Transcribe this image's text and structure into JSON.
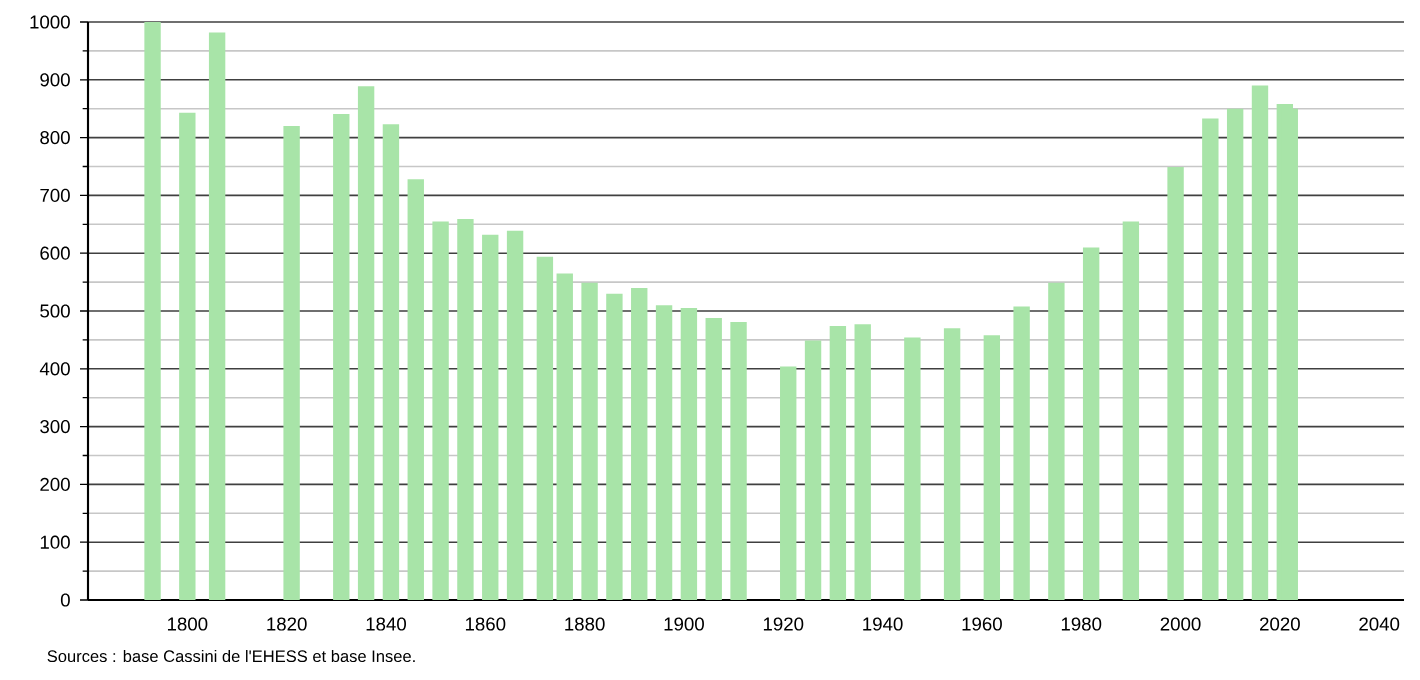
{
  "chart_data": {
    "type": "bar",
    "x": [
      1793,
      1800,
      1806,
      1821,
      1831,
      1836,
      1841,
      1846,
      1851,
      1856,
      1861,
      1866,
      1872,
      1876,
      1881,
      1886,
      1891,
      1896,
      1901,
      1906,
      1911,
      1921,
      1926,
      1931,
      1936,
      1946,
      1954,
      1962,
      1968,
      1975,
      1982,
      1990,
      1999,
      2006,
      2011,
      2016,
      2021,
      2022
    ],
    "values": [
      1000,
      843,
      982,
      820,
      841,
      889,
      823,
      728,
      655,
      659,
      632,
      639,
      594,
      565,
      549,
      530,
      540,
      510,
      505,
      488,
      481,
      404,
      449,
      474,
      477,
      454,
      470,
      458,
      508,
      549,
      610,
      655,
      749,
      833,
      850,
      890,
      858,
      850
    ],
    "color": "#a8e4a8",
    "xlim": [
      1780,
      2045
    ],
    "xticks": [
      1800,
      1820,
      1840,
      1860,
      1880,
      1900,
      1920,
      1940,
      1960,
      1980,
      2000,
      2020,
      2040
    ],
    "ylim": [
      0,
      1000
    ],
    "yticks": [
      0,
      100,
      200,
      300,
      400,
      500,
      600,
      700,
      800,
      900,
      1000
    ],
    "grid": "y",
    "annotations": [
      "Sources : base Cassini de l'EHESS et base Insee."
    ]
  }
}
